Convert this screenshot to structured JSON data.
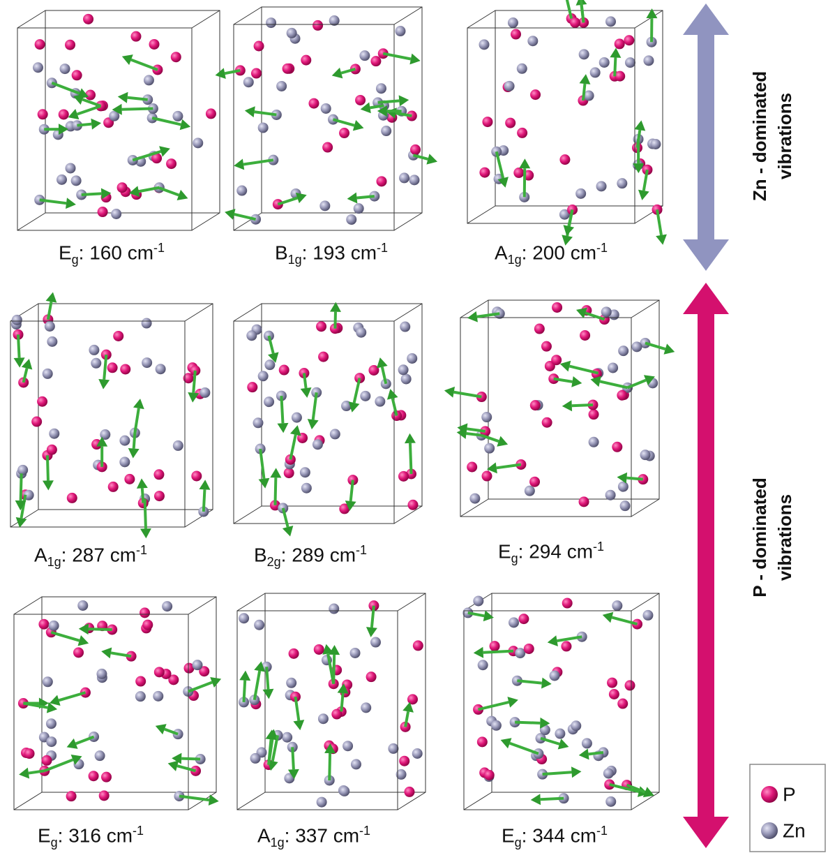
{
  "panels": [
    {
      "symbol": "E",
      "subscript": "g",
      "text": ": 160 cm",
      "superscript": "-1"
    },
    {
      "symbol": "B",
      "subscript": "1g",
      "text": ": 193 cm",
      "superscript": "-1"
    },
    {
      "symbol": "A",
      "subscript": "1g",
      "text": ": 200 cm",
      "superscript": "-1"
    },
    {
      "symbol": "A",
      "subscript": "1g",
      "text": ": 287 cm",
      "superscript": "-1"
    },
    {
      "symbol": "B",
      "subscript": "2g",
      "text": ": 289 cm",
      "superscript": "-1"
    },
    {
      "symbol": "E",
      "subscript": "g",
      "text": ": 294 cm",
      "superscript": "-1"
    },
    {
      "symbol": "E",
      "subscript": "g",
      "text": ": 316 cm",
      "superscript": "-1"
    },
    {
      "symbol": "A",
      "subscript": "1g",
      "text": ": 337 cm",
      "superscript": "-1"
    },
    {
      "symbol": "E",
      "subscript": "g",
      "text": ": 344 cm",
      "superscript": "-1"
    }
  ],
  "side_labels": [
    {
      "line1": "Zn - dominated",
      "line2": "vibrations"
    },
    {
      "line1": "P - dominated",
      "line2": "vibrations"
    }
  ],
  "legend": {
    "p": "P",
    "zn": "Zn"
  }
}
